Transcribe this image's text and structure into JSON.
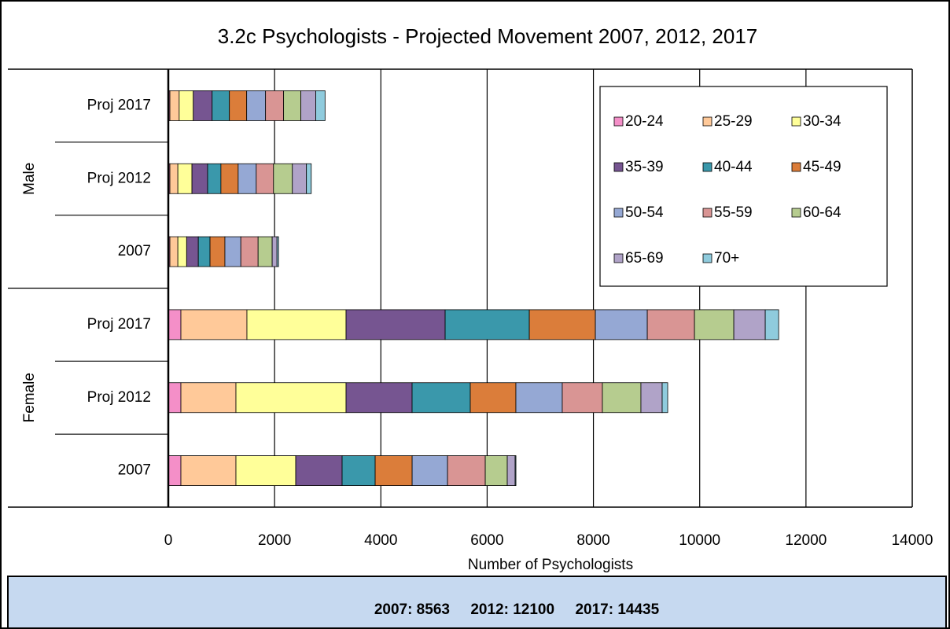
{
  "chart_data": {
    "type": "stacked-barh",
    "title": "3.2c Psychologists - Projected Movement  2007, 2012, 2017",
    "x_label": "Number of Psychologists",
    "groups": [
      "Male",
      "Female"
    ],
    "categories": [
      "Proj 2017",
      "Proj 2012",
      "2007",
      "Proj 2017",
      "Proj 2012",
      "2007"
    ],
    "series": [
      {
        "name": "20-24",
        "color": "#f48fc8",
        "values": [
          30,
          30,
          30,
          237,
          237,
          237
        ]
      },
      {
        "name": "25-29",
        "color": "#ffc999",
        "values": [
          175,
          150,
          150,
          1243,
          1036,
          1036
        ]
      },
      {
        "name": "30-34",
        "color": "#ffff99",
        "values": [
          265,
          265,
          165,
          1865,
          2072,
          1125
        ]
      },
      {
        "name": "35-39",
        "color": "#765591",
        "values": [
          355,
          295,
          220,
          1865,
          1243,
          873
        ]
      },
      {
        "name": "40-44",
        "color": "#3a98ab",
        "values": [
          325,
          250,
          220,
          1584,
          1095,
          622
        ]
      },
      {
        "name": "45-49",
        "color": "#db7d3a",
        "values": [
          325,
          325,
          280,
          1243,
          858,
          696
        ]
      },
      {
        "name": "50-54",
        "color": "#95a8d4",
        "values": [
          355,
          340,
          300,
          977,
          873,
          666
        ]
      },
      {
        "name": "55-59",
        "color": "#d99594",
        "values": [
          340,
          325,
          325,
          888,
          755,
          710
        ]
      },
      {
        "name": "60-64",
        "color": "#b6cc8f",
        "values": [
          325,
          355,
          265,
          740,
          725,
          414
        ]
      },
      {
        "name": "65-69",
        "color": "#b0a3c8",
        "values": [
          280,
          265,
          90,
          592,
          400,
          148
        ]
      },
      {
        "name": "70+",
        "color": "#8fcbdd",
        "values": [
          175,
          90,
          30,
          252,
          104,
          15
        ]
      }
    ],
    "xlim": [
      0,
      14000
    ],
    "xticks": [
      0,
      2000,
      4000,
      6000,
      8000,
      10000,
      12000,
      14000
    ],
    "grid": true,
    "legend_position": "top-right",
    "footer": "2007: 8563     2012: 12100     2017: 14435"
  }
}
